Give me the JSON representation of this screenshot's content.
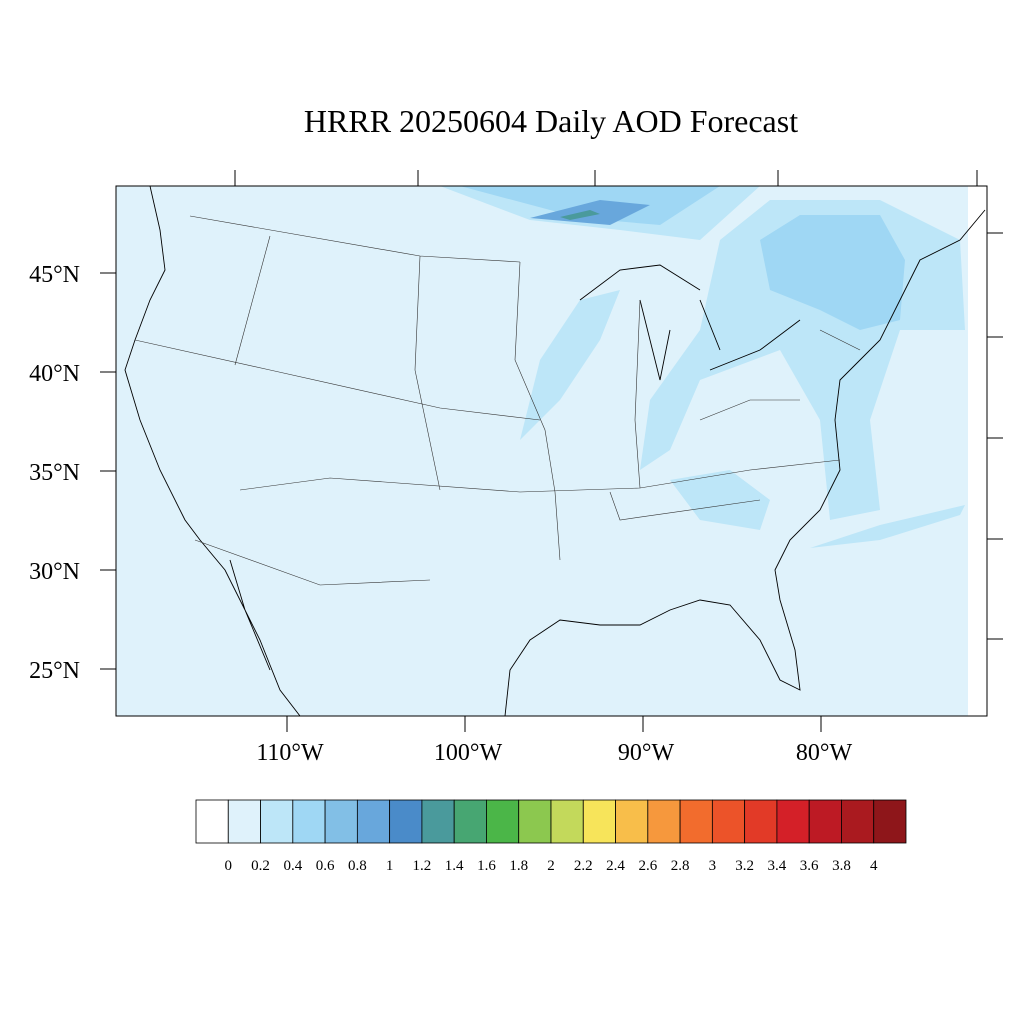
{
  "title": "HRRR 20250604 Daily AOD Forecast",
  "lat_labels": [
    "45°N",
    "40°N",
    "35°N",
    "30°N",
    "25°N"
  ],
  "lon_labels": [
    "110°W",
    "100°W",
    "90°W",
    "80°W"
  ],
  "colorbar": {
    "levels": [
      0,
      0.2,
      0.4,
      0.6,
      0.8,
      1,
      1.2,
      1.4,
      1.6,
      1.8,
      2,
      2.2,
      2.4,
      2.6,
      2.8,
      3,
      3.2,
      3.4,
      3.6,
      3.8,
      4
    ],
    "colors": [
      "#ffffff",
      "#dff2fb",
      "#bde6f8",
      "#9fd7f4",
      "#82bfe6",
      "#68a7dc",
      "#4a8bc9",
      "#4a9a9c",
      "#47a672",
      "#4bb648",
      "#8cc84f",
      "#c3d95b",
      "#f7e45a",
      "#f8be4a",
      "#f6983d",
      "#f26c2d",
      "#ec5329",
      "#e23a27",
      "#d42028",
      "#bd1a24",
      "#aa1a1f",
      "#8e161a"
    ]
  }
}
